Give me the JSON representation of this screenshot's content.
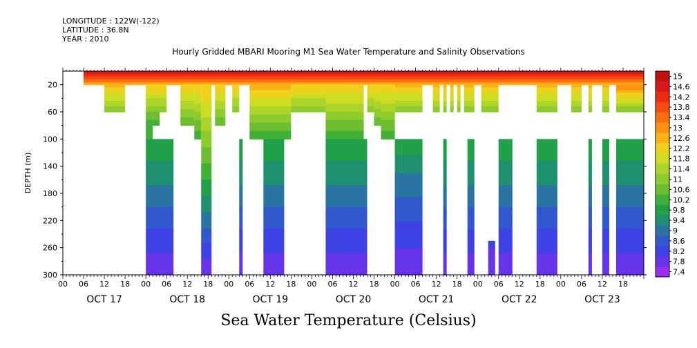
{
  "header": {
    "longitude": "LONGITUDE : 122W(-122)",
    "latitude": "LATITUDE : 36.8N",
    "year": "YEAR : 2010"
  },
  "chart_data": {
    "type": "heatmap",
    "title": "Hourly Gridded MBARI Mooring M1 Sea Water Temperature and Salinity Observations",
    "xlabel": "Sea Water Temperature (Celsius)",
    "ylabel": "DEPTH (m)",
    "ylim": [
      300,
      0
    ],
    "y_ticks": [
      20,
      60,
      100,
      140,
      180,
      220,
      260,
      300
    ],
    "x_hour_ticks": [
      "00",
      "06",
      "12",
      "18",
      "00",
      "06",
      "12",
      "18",
      "00",
      "06",
      "12",
      "18",
      "00",
      "06",
      "12",
      "18",
      "00",
      "06",
      "12",
      "18",
      "00",
      "06",
      "12",
      "18",
      "00",
      "06",
      "12",
      "18"
    ],
    "x_day_labels": [
      "OCT 17",
      "OCT 18",
      "OCT 19",
      "OCT 20",
      "OCT 21",
      "OCT 22",
      "OCT 23"
    ],
    "colorbar": {
      "min": 7.4,
      "max": 15,
      "ticks": [
        "15",
        "14.6",
        "14.2",
        "13.8",
        "13.4",
        "13",
        "12.6",
        "12.2",
        "11.8",
        "11.4",
        "11",
        "10.6",
        "10.2",
        "9.8",
        "9.4",
        "9",
        "8.6",
        "8.2",
        "7.8",
        "7.4"
      ],
      "colors": [
        "#c01010",
        "#d81818",
        "#ee2a10",
        "#f74a10",
        "#fb6e10",
        "#fc9210",
        "#f8b416",
        "#eed21e",
        "#cedc22",
        "#acd42a",
        "#8ccc2c",
        "#6cbe30",
        "#40b038",
        "#20a048",
        "#1e9070",
        "#2a74a4",
        "#3258d0",
        "#3e42e4",
        "#6634ea",
        "#9c2cf0"
      ]
    },
    "temperature_profile": {
      "depths": [
        2,
        20,
        40,
        60,
        100,
        140,
        180,
        220,
        260,
        300
      ],
      "values": [
        14.6,
        12.8,
        11.0,
        10.5,
        10.0,
        9.3,
        8.8,
        8.4,
        8.0,
        7.6
      ]
    },
    "time_range_hours": [
      -6,
      162
    ],
    "data_segments": [
      {
        "t0": 0,
        "t1": 162,
        "d0": 0,
        "d1": 16,
        "v0": 14.8,
        "v1": 13.2
      },
      {
        "t0": 0,
        "t1": 162,
        "d0": 16,
        "d1": 20,
        "v0": 13.2,
        "v1": 12.6
      },
      {
        "t0": 6,
        "t1": 12,
        "d0": 20,
        "d1": 60,
        "v0": 12.6,
        "v1": 10.8
      },
      {
        "t0": 18,
        "t1": 24,
        "d0": 20,
        "d1": 60,
        "v0": 12.4,
        "v1": 10.8
      },
      {
        "t0": 18,
        "t1": 20,
        "d0": 60,
        "d1": 100,
        "v0": 10.6,
        "v1": 10.0
      },
      {
        "t0": 20,
        "t1": 22,
        "d0": 60,
        "d1": 80,
        "v0": 10.6,
        "v1": 10.3
      },
      {
        "t0": 18,
        "t1": 26,
        "d0": 100,
        "d1": 300,
        "v0": 10.0,
        "v1": 7.6
      },
      {
        "t0": 28,
        "t1": 32,
        "d0": 20,
        "d1": 80,
        "v0": 12.4,
        "v1": 10.4
      },
      {
        "t0": 32,
        "t1": 34,
        "d0": 20,
        "d1": 100,
        "v0": 12.4,
        "v1": 10.0
      },
      {
        "t0": 34,
        "t1": 37,
        "d0": 20,
        "d1": 300,
        "v0": 12.4,
        "v1": 7.6
      },
      {
        "t0": 38,
        "t1": 41,
        "d0": 20,
        "d1": 80,
        "v0": 12.4,
        "v1": 10.4
      },
      {
        "t0": 43,
        "t1": 45,
        "d0": 20,
        "d1": 60,
        "v0": 12.4,
        "v1": 10.8
      },
      {
        "t0": 45,
        "t1": 46,
        "d0": 100,
        "d1": 300,
        "v0": 10.0,
        "v1": 7.6
      },
      {
        "t0": 48,
        "t1": 60,
        "d0": 20,
        "d1": 100,
        "v0": 12.6,
        "v1": 10.0
      },
      {
        "t0": 52,
        "t1": 58,
        "d0": 100,
        "d1": 300,
        "v0": 10.0,
        "v1": 7.6
      },
      {
        "t0": 60,
        "t1": 70,
        "d0": 20,
        "d1": 60,
        "v0": 12.4,
        "v1": 10.8
      },
      {
        "t0": 70,
        "t1": 81,
        "d0": 20,
        "d1": 100,
        "v0": 12.4,
        "v1": 10.0
      },
      {
        "t0": 70,
        "t1": 82,
        "d0": 100,
        "d1": 300,
        "v0": 10.0,
        "v1": 7.6
      },
      {
        "t0": 82,
        "t1": 84,
        "d0": 20,
        "d1": 60,
        "v0": 12.4,
        "v1": 10.8
      },
      {
        "t0": 84,
        "t1": 86,
        "d0": 20,
        "d1": 80,
        "v0": 12.4,
        "v1": 10.4
      },
      {
        "t0": 86,
        "t1": 90,
        "d0": 20,
        "d1": 100,
        "v0": 12.4,
        "v1": 10.0
      },
      {
        "t0": 90,
        "t1": 98,
        "d0": 20,
        "d1": 60,
        "v0": 12.6,
        "v1": 10.8
      },
      {
        "t0": 90,
        "t1": 92,
        "d0": 100,
        "d1": 150,
        "v0": 10.0,
        "v1": 9.2
      },
      {
        "t0": 90,
        "t1": 98,
        "d0": 150,
        "d1": 250,
        "v0": 9.2,
        "v1": 8.1
      },
      {
        "t0": 90,
        "t1": 98,
        "d0": 250,
        "d1": 300,
        "v0": 8.1,
        "v1": 7.6
      },
      {
        "t0": 92,
        "t1": 98,
        "d0": 100,
        "d1": 150,
        "v0": 10.0,
        "v1": 9.2
      },
      {
        "t0": 101,
        "t1": 103,
        "d0": 20,
        "d1": 60,
        "v0": 12.6,
        "v1": 10.8
      },
      {
        "t0": 104,
        "t1": 105,
        "d0": 20,
        "d1": 60,
        "v0": 12.6,
        "v1": 10.8
      },
      {
        "t0": 104,
        "t1": 105,
        "d0": 100,
        "d1": 300,
        "v0": 10.0,
        "v1": 7.6
      },
      {
        "t0": 106,
        "t1": 107,
        "d0": 20,
        "d1": 60,
        "v0": 12.6,
        "v1": 10.8
      },
      {
        "t0": 108,
        "t1": 109,
        "d0": 20,
        "d1": 60,
        "v0": 12.6,
        "v1": 10.8
      },
      {
        "t0": 110,
        "t1": 113,
        "d0": 20,
        "d1": 60,
        "v0": 12.6,
        "v1": 10.8
      },
      {
        "t0": 111,
        "t1": 113,
        "d0": 100,
        "d1": 300,
        "v0": 10.0,
        "v1": 7.6
      },
      {
        "t0": 115,
        "t1": 120,
        "d0": 20,
        "d1": 60,
        "v0": 12.6,
        "v1": 10.8
      },
      {
        "t0": 117,
        "t1": 119,
        "d0": 250,
        "d1": 300,
        "v0": 8.1,
        "v1": 7.6
      },
      {
        "t0": 120,
        "t1": 124,
        "d0": 100,
        "d1": 300,
        "v0": 10.0,
        "v1": 7.6
      },
      {
        "t0": 131,
        "t1": 137,
        "d0": 20,
        "d1": 60,
        "v0": 12.6,
        "v1": 10.8
      },
      {
        "t0": 131,
        "t1": 137,
        "d0": 100,
        "d1": 300,
        "v0": 10.0,
        "v1": 7.6
      },
      {
        "t0": 141,
        "t1": 144,
        "d0": 20,
        "d1": 60,
        "v0": 12.6,
        "v1": 10.8
      },
      {
        "t0": 146,
        "t1": 147,
        "d0": 20,
        "d1": 60,
        "v0": 12.6,
        "v1": 10.8
      },
      {
        "t0": 146,
        "t1": 147,
        "d0": 100,
        "d1": 300,
        "v0": 10.0,
        "v1": 7.6
      },
      {
        "t0": 150,
        "t1": 152,
        "d0": 20,
        "d1": 60,
        "v0": 12.6,
        "v1": 10.8
      },
      {
        "t0": 150,
        "t1": 152,
        "d0": 100,
        "d1": 300,
        "v0": 10.0,
        "v1": 7.6
      },
      {
        "t0": 154,
        "t1": 176,
        "d0": 20,
        "d1": 60,
        "v0": 13.2,
        "v1": 10.8
      },
      {
        "t0": 154,
        "t1": 168,
        "d0": 100,
        "d1": 300,
        "v0": 10.0,
        "v1": 7.6
      }
    ]
  }
}
